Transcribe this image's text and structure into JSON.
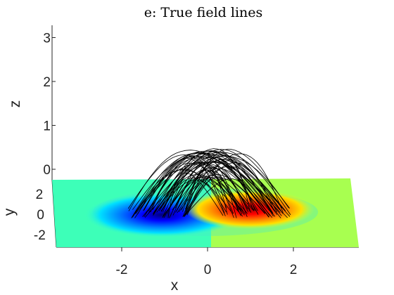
{
  "chart_data": {
    "type": "surface-with-lines",
    "title": "e:  True field lines",
    "xlabel": "x",
    "ylabel": "y",
    "zlabel": "z",
    "x_ticks": [
      "-2",
      "0",
      "2"
    ],
    "y_ticks": [
      "2",
      "0",
      "-2"
    ],
    "z_ticks": [
      "3",
      "2",
      "1",
      "0"
    ],
    "xlim": [
      -3.4,
      3.4
    ],
    "ylim": [
      -3.4,
      3.4
    ],
    "zlim": [
      0,
      3.2
    ],
    "grid": false,
    "colormap": "jet",
    "surface": {
      "plane_z": 0,
      "negative_pole": {
        "x": -1.0,
        "y": 0.0
      },
      "positive_pole": {
        "x": 1.1,
        "y": 0.0
      }
    },
    "field_lines": {
      "color": "#000000",
      "count": 60,
      "max_height": 1.45
    }
  }
}
